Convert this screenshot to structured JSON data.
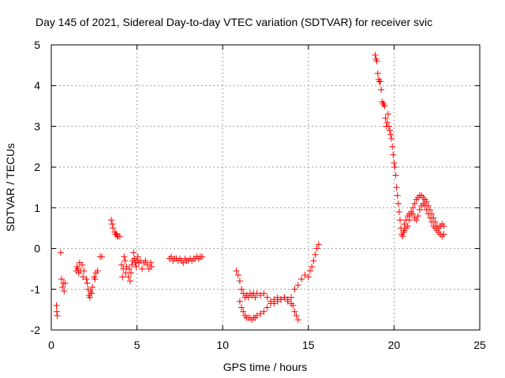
{
  "chart_data": {
    "type": "scatter",
    "title": "Day 145 of 2021, Sidereal Day-to-day VTEC variation (SDTVAR) for receiver svic",
    "xlabel": "GPS time / hours",
    "ylabel": "SDTVAR / TECUs",
    "xlim": [
      0,
      25
    ],
    "ylim": [
      -2,
      5
    ],
    "xticks": [
      0,
      5,
      10,
      15,
      20,
      25
    ],
    "yticks": [
      -2,
      -1,
      0,
      1,
      2,
      3,
      4,
      5
    ],
    "xtick_labels": [
      "0",
      "5",
      "10",
      "15",
      "20",
      "25"
    ],
    "ytick_labels": [
      "-2",
      "-1",
      "0",
      "1",
      "2",
      "3",
      "4",
      "5"
    ],
    "grid": true,
    "marker": "+",
    "color": "#ff0000",
    "series": [
      {
        "name": "svic",
        "points": [
          [
            0.3,
            -1.4
          ],
          [
            0.32,
            -1.55
          ],
          [
            0.35,
            -1.65
          ],
          [
            0.55,
            -0.1
          ],
          [
            0.6,
            -0.75
          ],
          [
            0.65,
            -0.95
          ],
          [
            0.7,
            -0.85
          ],
          [
            0.75,
            -1.05
          ],
          [
            0.8,
            -0.85
          ],
          [
            1.45,
            -0.55
          ],
          [
            1.5,
            -0.45
          ],
          [
            1.55,
            -0.5
          ],
          [
            1.6,
            -0.6
          ],
          [
            1.65,
            -0.35
          ],
          [
            1.7,
            -0.55
          ],
          [
            1.8,
            -0.4
          ],
          [
            1.85,
            -0.7
          ],
          [
            1.9,
            -0.55
          ],
          [
            2.05,
            -0.75
          ],
          [
            2.1,
            -0.85
          ],
          [
            2.15,
            -1.0
          ],
          [
            2.2,
            -1.15
          ],
          [
            2.25,
            -1.2
          ],
          [
            2.3,
            -1.05
          ],
          [
            2.35,
            -1.1
          ],
          [
            2.4,
            -0.95
          ],
          [
            2.5,
            -0.7
          ],
          [
            2.55,
            -0.75
          ],
          [
            2.6,
            -0.6
          ],
          [
            2.7,
            -0.55
          ],
          [
            2.85,
            -0.2
          ],
          [
            2.95,
            -0.2
          ],
          [
            3.5,
            0.7
          ],
          [
            3.55,
            0.6
          ],
          [
            3.6,
            0.5
          ],
          [
            3.7,
            0.4
          ],
          [
            3.75,
            0.35
          ],
          [
            3.8,
            0.35
          ],
          [
            3.85,
            0.3
          ],
          [
            3.9,
            0.3
          ],
          [
            4.0,
            0.3
          ],
          [
            4.1,
            -0.4
          ],
          [
            4.15,
            -0.7
          ],
          [
            4.2,
            -0.5
          ],
          [
            4.25,
            -0.2
          ],
          [
            4.3,
            -0.3
          ],
          [
            4.35,
            -0.6
          ],
          [
            4.4,
            -0.45
          ],
          [
            4.5,
            -0.7
          ],
          [
            4.55,
            -0.5
          ],
          [
            4.6,
            -0.8
          ],
          [
            4.65,
            -0.6
          ],
          [
            4.7,
            -0.4
          ],
          [
            4.75,
            -0.3
          ],
          [
            4.8,
            -0.1
          ],
          [
            4.85,
            -0.25
          ],
          [
            4.9,
            -0.35
          ],
          [
            4.95,
            -0.45
          ],
          [
            5.0,
            -0.3
          ],
          [
            5.05,
            -0.2
          ],
          [
            5.1,
            -0.35
          ],
          [
            5.2,
            -0.3
          ],
          [
            5.3,
            -0.5
          ],
          [
            5.4,
            -0.35
          ],
          [
            5.5,
            -0.3
          ],
          [
            5.6,
            -0.4
          ],
          [
            5.7,
            -0.5
          ],
          [
            5.8,
            -0.35
          ],
          [
            5.85,
            -0.45
          ],
          [
            6.9,
            -0.25
          ],
          [
            7.0,
            -0.2
          ],
          [
            7.1,
            -0.3
          ],
          [
            7.2,
            -0.25
          ],
          [
            7.3,
            -0.25
          ],
          [
            7.4,
            -0.3
          ],
          [
            7.5,
            -0.25
          ],
          [
            7.6,
            -0.3
          ],
          [
            7.7,
            -0.35
          ],
          [
            7.8,
            -0.25
          ],
          [
            7.9,
            -0.3
          ],
          [
            8.0,
            -0.3
          ],
          [
            8.1,
            -0.25
          ],
          [
            8.2,
            -0.3
          ],
          [
            8.3,
            -0.25
          ],
          [
            8.4,
            -0.25
          ],
          [
            8.5,
            -0.2
          ],
          [
            8.6,
            -0.25
          ],
          [
            8.7,
            -0.2
          ],
          [
            8.8,
            -0.2
          ],
          [
            10.8,
            -0.55
          ],
          [
            10.9,
            -0.65
          ],
          [
            11.0,
            -0.8
          ],
          [
            11.1,
            -1.0
          ],
          [
            11.2,
            -1.1
          ],
          [
            11.3,
            -1.2
          ],
          [
            11.4,
            -1.15
          ],
          [
            11.5,
            -1.2
          ],
          [
            11.6,
            -1.1
          ],
          [
            11.7,
            -1.15
          ],
          [
            11.8,
            -1.1
          ],
          [
            11.9,
            -1.2
          ],
          [
            12.0,
            -1.1
          ],
          [
            12.2,
            -1.15
          ],
          [
            12.4,
            -1.1
          ],
          [
            12.6,
            -1.2
          ],
          [
            12.8,
            -1.3
          ],
          [
            13.0,
            -1.35
          ],
          [
            13.2,
            -1.3
          ],
          [
            13.4,
            -1.25
          ],
          [
            13.6,
            -1.2
          ],
          [
            13.8,
            -1.3
          ],
          [
            14.0,
            -1.2
          ],
          [
            14.2,
            -1.0
          ],
          [
            14.4,
            -0.9
          ],
          [
            14.6,
            -0.75
          ],
          [
            14.8,
            -0.65
          ],
          [
            15.0,
            -0.7
          ],
          [
            15.1,
            -0.55
          ],
          [
            15.2,
            -0.45
          ],
          [
            15.3,
            -0.3
          ],
          [
            15.4,
            -0.15
          ],
          [
            15.5,
            0.0
          ],
          [
            15.6,
            0.1
          ],
          [
            11.0,
            -1.3
          ],
          [
            11.1,
            -1.45
          ],
          [
            11.2,
            -1.55
          ],
          [
            11.3,
            -1.65
          ],
          [
            11.4,
            -1.7
          ],
          [
            11.5,
            -1.7
          ],
          [
            11.6,
            -1.7
          ],
          [
            11.7,
            -1.75
          ],
          [
            11.8,
            -1.7
          ],
          [
            11.9,
            -1.7
          ],
          [
            12.0,
            -1.65
          ],
          [
            12.2,
            -1.6
          ],
          [
            12.4,
            -1.55
          ],
          [
            12.6,
            -1.45
          ],
          [
            12.8,
            -1.35
          ],
          [
            13.0,
            -1.25
          ],
          [
            13.2,
            -1.2
          ],
          [
            13.4,
            -1.25
          ],
          [
            13.6,
            -1.2
          ],
          [
            13.8,
            -1.25
          ],
          [
            14.0,
            -1.35
          ],
          [
            14.1,
            -1.4
          ],
          [
            14.2,
            -1.55
          ],
          [
            14.3,
            -1.65
          ],
          [
            14.4,
            -1.75
          ],
          [
            18.9,
            4.75
          ],
          [
            18.95,
            4.65
          ],
          [
            19.0,
            4.6
          ],
          [
            19.05,
            4.3
          ],
          [
            19.1,
            4.15
          ],
          [
            19.15,
            4.1
          ],
          [
            19.2,
            4.1
          ],
          [
            19.25,
            3.9
          ],
          [
            19.3,
            3.6
          ],
          [
            19.35,
            3.55
          ],
          [
            19.4,
            3.55
          ],
          [
            19.45,
            3.5
          ],
          [
            19.5,
            3.2
          ],
          [
            19.55,
            3.0
          ],
          [
            19.6,
            3.1
          ],
          [
            19.65,
            3.3
          ],
          [
            19.7,
            3.0
          ],
          [
            19.75,
            2.9
          ],
          [
            19.8,
            2.8
          ],
          [
            19.85,
            2.7
          ],
          [
            19.9,
            2.5
          ],
          [
            19.95,
            2.3
          ],
          [
            20.0,
            2.1
          ],
          [
            20.05,
            2.0
          ],
          [
            20.1,
            1.8
          ],
          [
            20.15,
            1.5
          ],
          [
            20.2,
            1.3
          ],
          [
            20.25,
            1.1
          ],
          [
            20.3,
            0.9
          ],
          [
            20.35,
            0.7
          ],
          [
            20.4,
            0.5
          ],
          [
            20.45,
            0.35
          ],
          [
            20.5,
            0.3
          ],
          [
            20.55,
            0.4
          ],
          [
            20.6,
            0.45
          ],
          [
            20.7,
            0.5
          ],
          [
            20.8,
            0.55
          ],
          [
            20.9,
            0.7
          ],
          [
            21.0,
            0.85
          ],
          [
            21.1,
            1.0
          ],
          [
            21.2,
            1.1
          ],
          [
            21.3,
            1.2
          ],
          [
            21.4,
            1.25
          ],
          [
            21.5,
            1.3
          ],
          [
            21.6,
            1.3
          ],
          [
            21.7,
            1.25
          ],
          [
            21.8,
            1.2
          ],
          [
            21.9,
            1.15
          ],
          [
            22.0,
            1.05
          ],
          [
            22.1,
            0.95
          ],
          [
            22.2,
            0.85
          ],
          [
            22.3,
            0.75
          ],
          [
            22.4,
            0.65
          ],
          [
            22.5,
            0.55
          ],
          [
            22.6,
            0.5
          ],
          [
            22.7,
            0.55
          ],
          [
            22.8,
            0.6
          ],
          [
            22.9,
            0.55
          ],
          [
            20.6,
            0.6
          ],
          [
            20.7,
            0.7
          ],
          [
            20.8,
            0.8
          ],
          [
            20.9,
            0.85
          ],
          [
            21.0,
            0.9
          ],
          [
            21.1,
            0.85
          ],
          [
            21.2,
            0.75
          ],
          [
            21.3,
            0.7
          ],
          [
            21.4,
            0.8
          ],
          [
            21.5,
            0.95
          ],
          [
            21.6,
            1.05
          ],
          [
            21.7,
            1.1
          ],
          [
            21.8,
            1.05
          ],
          [
            21.9,
            0.95
          ],
          [
            22.0,
            0.85
          ],
          [
            22.1,
            0.75
          ],
          [
            22.2,
            0.65
          ],
          [
            22.3,
            0.55
          ],
          [
            22.4,
            0.5
          ],
          [
            22.5,
            0.45
          ],
          [
            22.6,
            0.4
          ],
          [
            22.7,
            0.35
          ],
          [
            22.8,
            0.3
          ],
          [
            22.9,
            0.35
          ]
        ]
      }
    ]
  }
}
